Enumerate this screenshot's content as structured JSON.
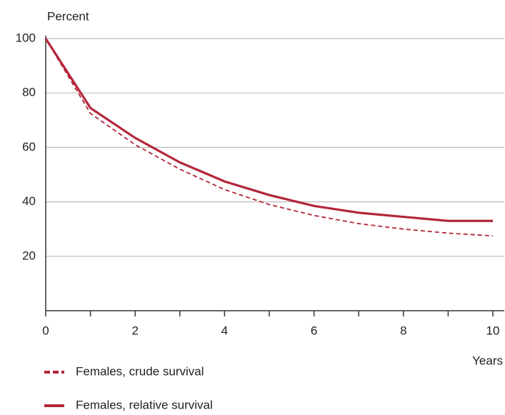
{
  "chart_data": {
    "type": "line",
    "y_label": "Percent",
    "x_label": "Years",
    "x": [
      0,
      1,
      2,
      3,
      4,
      5,
      6,
      7,
      8,
      9,
      10
    ],
    "series": [
      {
        "name": "Females, crude survival",
        "color": "#b3263a",
        "style": "dashed",
        "values": [
          100,
          72.5,
          61,
          52,
          44.5,
          39,
          35,
          32,
          30,
          28.5,
          27.5
        ]
      },
      {
        "name": "Females, relative survival",
        "color": "#b3263a",
        "style": "solid",
        "values": [
          100,
          74.5,
          63.5,
          54.5,
          47.5,
          42.5,
          38.5,
          36,
          34.5,
          33,
          33
        ]
      }
    ],
    "xlim": [
      0,
      10
    ],
    "xticks": [
      0,
      2,
      4,
      6,
      8,
      10
    ],
    "xminorticks": [
      1,
      3,
      5,
      7,
      9
    ],
    "ylim": [
      0,
      100
    ],
    "yticks": [
      20,
      40,
      60,
      80,
      100
    ],
    "grid": true,
    "legend": "bottom-left"
  }
}
